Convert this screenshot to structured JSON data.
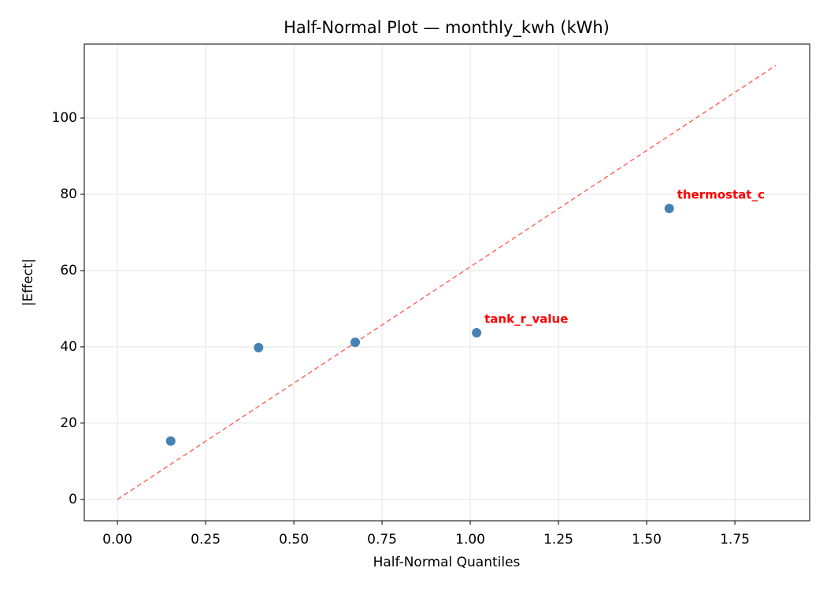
{
  "chart_data": {
    "type": "scatter",
    "title": "Half-Normal Plot — monthly_kwh (kWh)",
    "x_label": "Half-Normal Quantiles",
    "y_label": "|Effect|",
    "series": [
      {
        "color": "#4682b4",
        "x": [
          0.151,
          0.4,
          0.674,
          1.018,
          1.564
        ],
        "values": [
          15.3,
          39.8,
          41.2,
          43.7,
          76.3
        ],
        "labels": [
          null,
          null,
          null,
          "tank_r_value",
          "thermostat_c"
        ],
        "label_color": "#ff0000"
      }
    ],
    "reference_line": {
      "x": [
        0,
        1.866
      ],
      "values": [
        0,
        113.8
      ],
      "color": "#ff6961",
      "dashed": true
    },
    "xlim": [
      -0.094,
      1.962
    ],
    "ylim": [
      -5.6,
      119.4
    ],
    "xticks": [
      {
        "value": 0,
        "label": "0.00"
      },
      {
        "value": 0.25,
        "label": "0.25"
      },
      {
        "value": 0.5,
        "label": "0.50"
      },
      {
        "value": 0.75,
        "label": "0.75"
      },
      {
        "value": 1,
        "label": "1.00"
      },
      {
        "value": 1.25,
        "label": "1.25"
      },
      {
        "value": 1.5,
        "label": "1.50"
      },
      {
        "value": 1.75,
        "label": "1.75"
      }
    ],
    "yticks": [
      0,
      20,
      40,
      60,
      80,
      100
    ],
    "grid": true
  }
}
